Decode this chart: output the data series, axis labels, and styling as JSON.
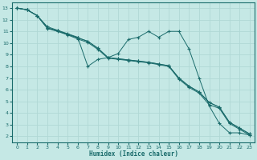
{
  "xlabel": "Humidex (Indice chaleur)",
  "background_color": "#c5e8e5",
  "grid_color": "#b0d8d5",
  "line_color": "#1a6b6b",
  "xlim": [
    -0.5,
    23.5
  ],
  "ylim": [
    1.5,
    13.5
  ],
  "xticks": [
    0,
    1,
    2,
    3,
    4,
    5,
    6,
    7,
    8,
    9,
    10,
    11,
    12,
    13,
    14,
    15,
    16,
    17,
    18,
    19,
    20,
    21,
    22,
    23
  ],
  "yticks": [
    2,
    3,
    4,
    5,
    6,
    7,
    8,
    9,
    10,
    11,
    12,
    13
  ],
  "lines": [
    {
      "x": [
        0,
        1,
        2,
        3,
        4,
        5,
        6,
        7,
        8,
        9,
        10,
        11,
        12,
        13,
        14,
        15,
        16,
        17,
        18,
        19,
        20,
        21,
        22,
        23
      ],
      "y": [
        13.0,
        12.85,
        12.35,
        11.3,
        11.05,
        10.75,
        10.45,
        10.15,
        9.55,
        8.75,
        8.65,
        8.55,
        8.45,
        8.35,
        8.2,
        8.05,
        7.0,
        6.3,
        5.8,
        4.9,
        4.5,
        3.2,
        2.7,
        2.2
      ]
    },
    {
      "x": [
        0,
        1,
        2,
        3,
        4,
        5,
        6,
        7,
        8,
        9,
        10,
        11,
        12,
        13,
        14,
        15,
        16,
        17,
        18,
        19,
        20,
        21,
        22,
        23
      ],
      "y": [
        13.0,
        12.85,
        12.35,
        11.4,
        11.1,
        10.8,
        10.5,
        8.0,
        8.6,
        8.75,
        9.1,
        10.3,
        10.5,
        11.0,
        10.5,
        11.0,
        11.0,
        9.5,
        7.0,
        4.6,
        3.1,
        2.3,
        2.3,
        2.1
      ]
    },
    {
      "x": [
        0,
        1,
        2,
        3,
        4,
        5,
        6,
        7,
        8,
        9,
        10,
        11,
        12,
        13,
        14,
        15,
        16,
        17,
        18,
        19,
        20,
        21,
        22,
        23
      ],
      "y": [
        13.0,
        12.85,
        12.35,
        11.3,
        11.05,
        10.75,
        10.45,
        10.15,
        9.55,
        8.75,
        8.65,
        8.55,
        8.45,
        8.35,
        8.2,
        8.05,
        7.0,
        6.3,
        5.8,
        4.9,
        4.5,
        3.2,
        2.7,
        2.2
      ]
    },
    {
      "x": [
        0,
        1,
        2,
        3,
        4,
        5,
        6,
        7,
        8,
        9,
        10,
        11,
        12,
        13,
        14,
        15,
        16,
        17,
        18,
        19,
        20,
        21,
        22,
        23
      ],
      "y": [
        13.0,
        12.85,
        12.35,
        11.25,
        11.0,
        10.7,
        10.35,
        10.05,
        9.45,
        8.7,
        8.6,
        8.5,
        8.4,
        8.3,
        8.15,
        8.0,
        6.9,
        6.2,
        5.7,
        4.7,
        4.4,
        3.1,
        2.6,
        2.1
      ]
    }
  ]
}
